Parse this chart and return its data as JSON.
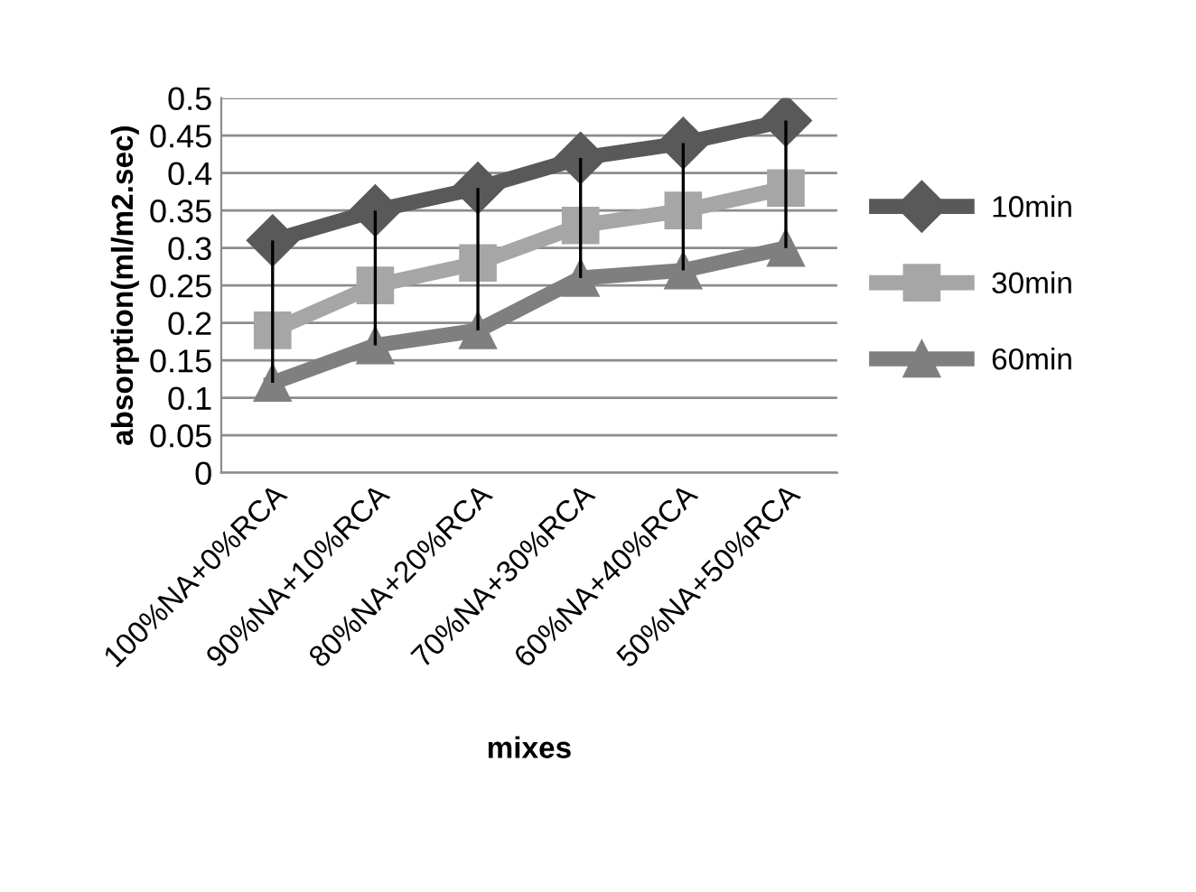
{
  "chart_data": {
    "type": "line",
    "xlabel": "mixes",
    "ylabel": "absorption(ml/m2.sec)",
    "categories": [
      "100%NA+0%RCA",
      "90%NA+10%RCA",
      "80%NA+20%RCA",
      "70%NA+30%RCA",
      "60%NA+40%RCA",
      "50%NA+50%RCA"
    ],
    "series": [
      {
        "name": "10min",
        "color": "#595959",
        "marker": "diamond",
        "values": [
          0.31,
          0.35,
          0.38,
          0.42,
          0.44,
          0.47
        ]
      },
      {
        "name": "30min",
        "color": "#a6a6a6",
        "marker": "square",
        "values": [
          0.19,
          0.25,
          0.28,
          0.33,
          0.35,
          0.38
        ],
        "errors": [
          [
            0.12,
            0.31
          ],
          [
            0.17,
            0.35
          ],
          [
            0.19,
            0.38
          ],
          [
            0.26,
            0.42
          ],
          [
            0.27,
            0.44
          ],
          [
            0.3,
            0.47
          ]
        ]
      },
      {
        "name": "60min",
        "color": "#7f7f7f",
        "marker": "triangle",
        "values": [
          0.12,
          0.17,
          0.19,
          0.26,
          0.27,
          0.3
        ]
      }
    ],
    "ylim": [
      0,
      0.5
    ],
    "yticks": [
      {
        "value": 0,
        "label": "0"
      },
      0.05,
      0.1,
      0.15,
      0.2,
      0.25,
      0.3,
      0.35,
      0.4,
      0.45,
      0.5
    ],
    "grid": "y",
    "legend": "right"
  }
}
